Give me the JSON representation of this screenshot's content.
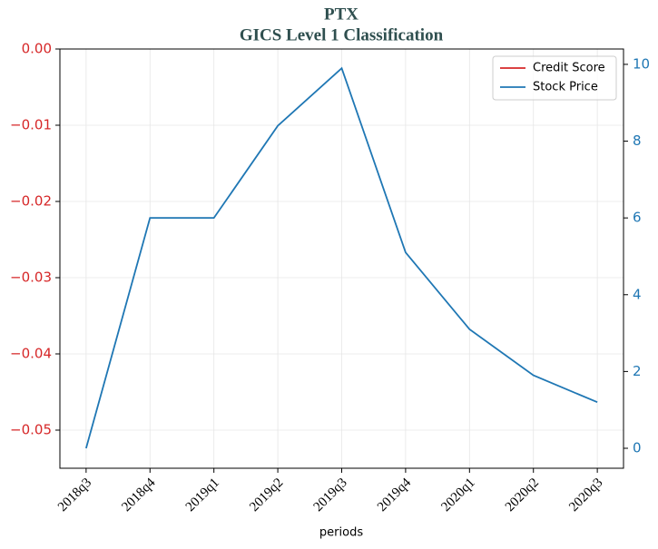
{
  "chart_data": {
    "type": "line",
    "title": "PTX",
    "subtitle": "GICS Level 1 Classification",
    "xlabel": "periods",
    "categories": [
      "2018q3",
      "2018q4",
      "2019q1",
      "2019q2",
      "2019q3",
      "2019q4",
      "2020q1",
      "2020q2",
      "2020q3"
    ],
    "series": [
      {
        "name": "Credit Score",
        "color": "#d62728",
        "axis": "y",
        "values": [
          null,
          null,
          null,
          null,
          null,
          null,
          null,
          null,
          null
        ]
      },
      {
        "name": "Stock Price",
        "color": "#1f77b4",
        "axis": "y2",
        "values": [
          0,
          6.0,
          6.0,
          8.4,
          9.9,
          5.1,
          3.1,
          1.9,
          1.2
        ]
      }
    ],
    "ylim": [
      -0.055,
      0
    ],
    "yticks": [
      {
        "value": 0,
        "label": "0.00"
      },
      {
        "value": -0.01,
        "label": "−0.01"
      },
      {
        "value": -0.02,
        "label": "−0.02"
      },
      {
        "value": -0.03,
        "label": "−0.03"
      },
      {
        "value": -0.04,
        "label": "−0.04"
      },
      {
        "value": -0.05,
        "label": "−0.05"
      }
    ],
    "y2lim": [
      -0.52,
      10.4
    ],
    "y2ticks": [
      0,
      2,
      4,
      6,
      8,
      10
    ],
    "grid": true,
    "legend": "upper right"
  }
}
